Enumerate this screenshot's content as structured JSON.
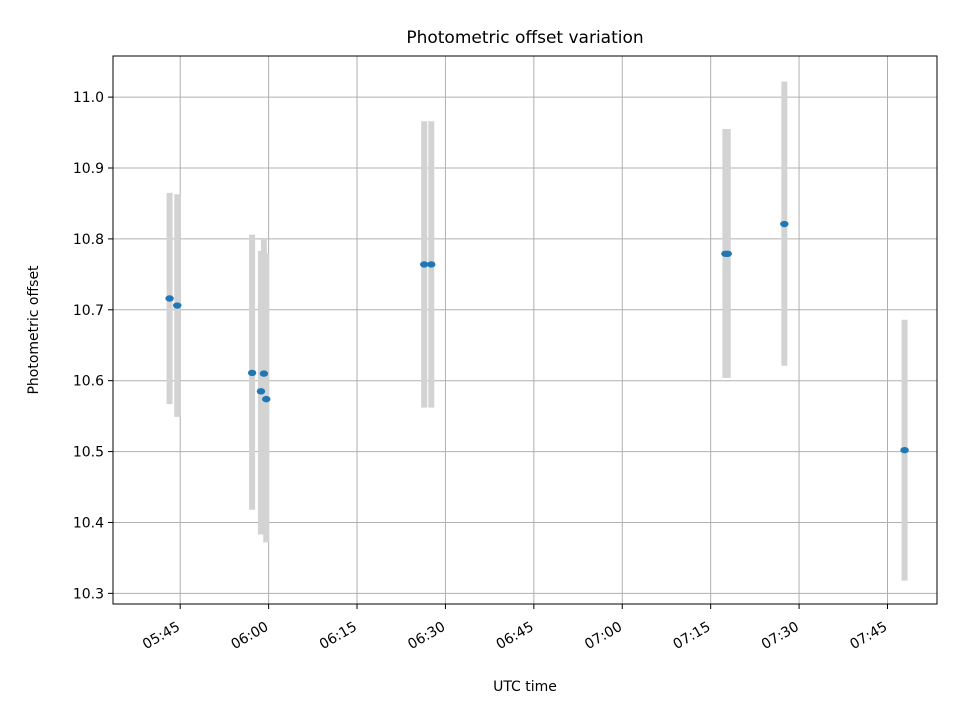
{
  "chart_data": {
    "type": "scatter",
    "title": "Photometric offset variation",
    "xlabel": "UTC time",
    "ylabel": "Photometric offset",
    "x_tick_labels": [
      "05:45",
      "06:00",
      "06:15",
      "06:30",
      "06:45",
      "07:00",
      "07:15",
      "07:30",
      "07:45"
    ],
    "x_tick_minutes": [
      345,
      360,
      375,
      390,
      405,
      420,
      435,
      450,
      465
    ],
    "xlim_minutes": [
      333.6,
      473.4
    ],
    "y_ticks": [
      10.3,
      10.4,
      10.5,
      10.6,
      10.7,
      10.8,
      10.9,
      11.0
    ],
    "y_tick_labels": [
      "10.3",
      "10.4",
      "10.5",
      "10.6",
      "10.7",
      "10.8",
      "10.9",
      "11.0"
    ],
    "ylim": [
      10.285,
      11.058
    ],
    "grid": true,
    "points": [
      {
        "time": "05:43:12",
        "y": 10.716,
        "yerr_low": 10.567,
        "yerr_high": 10.865
      },
      {
        "time": "05:44:30",
        "y": 10.706,
        "yerr_low": 10.549,
        "yerr_high": 10.863
      },
      {
        "time": "05:57:12",
        "y": 10.611,
        "yerr_low": 10.418,
        "yerr_high": 10.806
      },
      {
        "time": "05:58:42",
        "y": 10.585,
        "yerr_low": 10.383,
        "yerr_high": 10.783
      },
      {
        "time": "05:59:12",
        "y": 10.61,
        "yerr_low": 10.42,
        "yerr_high": 10.8
      },
      {
        "time": "05:59:36",
        "y": 10.574,
        "yerr_low": 10.372,
        "yerr_high": 10.78
      },
      {
        "time": "06:26:24",
        "y": 10.764,
        "yerr_low": 10.562,
        "yerr_high": 10.966
      },
      {
        "time": "06:27:36",
        "y": 10.764,
        "yerr_low": 10.562,
        "yerr_high": 10.966
      },
      {
        "time": "07:17:30",
        "y": 10.779,
        "yerr_low": 10.604,
        "yerr_high": 10.955
      },
      {
        "time": "07:17:54",
        "y": 10.779,
        "yerr_low": 10.604,
        "yerr_high": 10.955
      },
      {
        "time": "07:27:30",
        "y": 10.821,
        "yerr_low": 10.621,
        "yerr_high": 11.022
      },
      {
        "time": "07:47:54",
        "y": 10.502,
        "yerr_low": 10.318,
        "yerr_high": 10.686
      }
    ],
    "colors": {
      "marker": "#1f77b4",
      "errorbar": "#d3d3d3",
      "grid": "#b0b0b0"
    }
  }
}
